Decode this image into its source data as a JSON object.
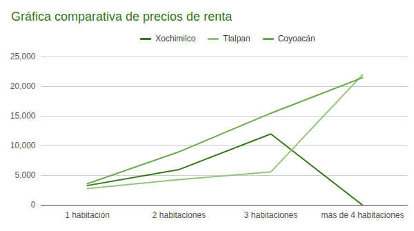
{
  "chart_data": {
    "type": "line",
    "title": "Gráfica comparativa de precios de renta",
    "categories": [
      "1 habitación",
      "2 habitaciones",
      "3 habitaciones",
      "más de 4 habitaciones"
    ],
    "series": [
      {
        "name": "Xochimilco",
        "color": "#38761d",
        "values": [
          3300,
          6000,
          12000,
          0
        ]
      },
      {
        "name": "Tlalpan",
        "color": "#93c47d",
        "values": [
          2800,
          4300,
          5600,
          22000
        ]
      },
      {
        "name": "Coyoacán",
        "color": "#6aa84f",
        "values": [
          3600,
          9000,
          15500,
          21500
        ]
      }
    ],
    "ylim": [
      0,
      25000
    ],
    "yticks": [
      0,
      5000,
      10000,
      15000,
      20000,
      25000
    ],
    "grid": true,
    "legend": "top",
    "color": "#38761d"
  }
}
